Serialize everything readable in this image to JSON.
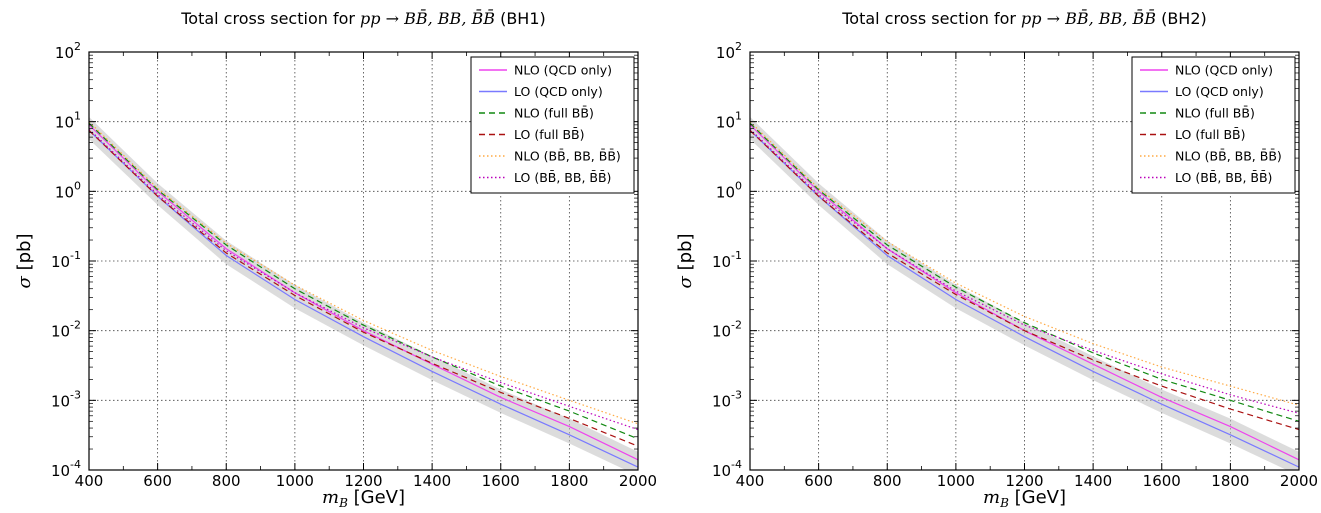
{
  "chart_data": [
    {
      "type": "line",
      "title_prefix": "Total cross section for ",
      "title_math": "pp → BB̄, BB, B̄B̄",
      "title_suffix": " (BH1)",
      "xlabel_math": "m",
      "xlabel_sub": "B",
      "xlabel_unit": " [GeV]",
      "ylabel_math": "σ",
      "ylabel_unit": " [pb]",
      "xlim": [
        400,
        2000
      ],
      "ylim": [
        0.0001,
        100
      ],
      "yscale": "log",
      "grid": true,
      "legend_position": "top-right",
      "x_ticks": [
        "400",
        "600",
        "800",
        "1000",
        "1200",
        "1400",
        "1600",
        "1800",
        "2000"
      ],
      "y_ticks": [
        {
          "base": "10",
          "exp": "-4"
        },
        {
          "base": "10",
          "exp": "-3"
        },
        {
          "base": "10",
          "exp": "-2"
        },
        {
          "base": "10",
          "exp": "-1"
        },
        {
          "base": "10",
          "exp": "0"
        },
        {
          "base": "10",
          "exp": "1"
        },
        {
          "base": "10",
          "exp": "2"
        }
      ],
      "x": [
        400,
        600,
        800,
        1000,
        1200,
        1400,
        1600,
        1800,
        2000
      ],
      "series": [
        {
          "name": "NLO (QCD only)",
          "style": "solid",
          "color": "#ee44ee",
          "values": [
            9.0,
            1.0,
            0.15,
            0.035,
            0.01,
            0.0033,
            0.0011,
            0.00042,
            0.00014
          ]
        },
        {
          "name": "LO (QCD only)",
          "style": "solid",
          "color": "#7a7aff",
          "values": [
            7.5,
            0.85,
            0.12,
            0.028,
            0.0082,
            0.0026,
            0.00088,
            0.00032,
            0.00011
          ]
        },
        {
          "name": "NLO (full BB̄)",
          "style": "dashed",
          "color": "#118811",
          "values": [
            9.5,
            1.05,
            0.17,
            0.04,
            0.012,
            0.0042,
            0.0016,
            0.0007,
            0.00028
          ]
        },
        {
          "name": "LO (full BB̄)",
          "style": "dashed",
          "color": "#aa1111",
          "values": [
            7.5,
            0.85,
            0.13,
            0.032,
            0.0095,
            0.0034,
            0.0013,
            0.00055,
            0.00022
          ]
        },
        {
          "name": "NLO (BB̄, BB, B̄B̄)",
          "style": "dotted",
          "color": "#ffaa44",
          "values": [
            10.0,
            1.1,
            0.18,
            0.045,
            0.014,
            0.0052,
            0.0022,
            0.001,
            0.00046
          ]
        },
        {
          "name": "LO (BB̄, BB, B̄B̄)",
          "style": "dotted",
          "color": "#bb00bb",
          "values": [
            7.8,
            0.9,
            0.14,
            0.035,
            0.011,
            0.0042,
            0.0018,
            0.00082,
            0.00038
          ]
        }
      ]
    },
    {
      "type": "line",
      "title_prefix": "Total cross section for ",
      "title_math": "pp → BB̄, BB, B̄B̄",
      "title_suffix": " (BH2)",
      "xlabel_math": "m",
      "xlabel_sub": "B",
      "xlabel_unit": " [GeV]",
      "ylabel_math": "σ",
      "ylabel_unit": " [pb]",
      "xlim": [
        400,
        2000
      ],
      "ylim": [
        0.0001,
        100
      ],
      "yscale": "log",
      "grid": true,
      "legend_position": "top-right",
      "x_ticks": [
        "400",
        "600",
        "800",
        "1000",
        "1200",
        "1400",
        "1600",
        "1800",
        "2000"
      ],
      "y_ticks": [
        {
          "base": "10",
          "exp": "-4"
        },
        {
          "base": "10",
          "exp": "-3"
        },
        {
          "base": "10",
          "exp": "-2"
        },
        {
          "base": "10",
          "exp": "-1"
        },
        {
          "base": "10",
          "exp": "0"
        },
        {
          "base": "10",
          "exp": "1"
        },
        {
          "base": "10",
          "exp": "2"
        }
      ],
      "x": [
        400,
        600,
        800,
        1000,
        1200,
        1400,
        1600,
        1800,
        2000
      ],
      "series": [
        {
          "name": "NLO (QCD only)",
          "style": "solid",
          "color": "#ee44ee",
          "values": [
            9.0,
            1.0,
            0.15,
            0.035,
            0.01,
            0.0033,
            0.0011,
            0.00042,
            0.00014
          ]
        },
        {
          "name": "LO (QCD only)",
          "style": "solid",
          "color": "#7a7aff",
          "values": [
            7.5,
            0.85,
            0.12,
            0.028,
            0.0082,
            0.0026,
            0.00088,
            0.00032,
            0.00011
          ]
        },
        {
          "name": "NLO (full BB̄)",
          "style": "dashed",
          "color": "#118811",
          "values": [
            9.5,
            1.05,
            0.17,
            0.042,
            0.013,
            0.0048,
            0.002,
            0.001,
            0.0005
          ]
        },
        {
          "name": "LO (full BB̄)",
          "style": "dashed",
          "color": "#aa1111",
          "values": [
            7.5,
            0.85,
            0.13,
            0.033,
            0.01,
            0.0038,
            0.0016,
            0.00075,
            0.00038
          ]
        },
        {
          "name": "NLO (BB̄, BB, B̄B̄)",
          "style": "dotted",
          "color": "#ffaa44",
          "values": [
            10.0,
            1.1,
            0.19,
            0.048,
            0.016,
            0.0065,
            0.003,
            0.0016,
            0.00085
          ]
        },
        {
          "name": "LO (BB̄, BB, B̄B̄)",
          "style": "dotted",
          "color": "#bb00bb",
          "values": [
            7.8,
            0.9,
            0.15,
            0.037,
            0.012,
            0.0052,
            0.0024,
            0.0012,
            0.00065
          ]
        }
      ]
    }
  ]
}
